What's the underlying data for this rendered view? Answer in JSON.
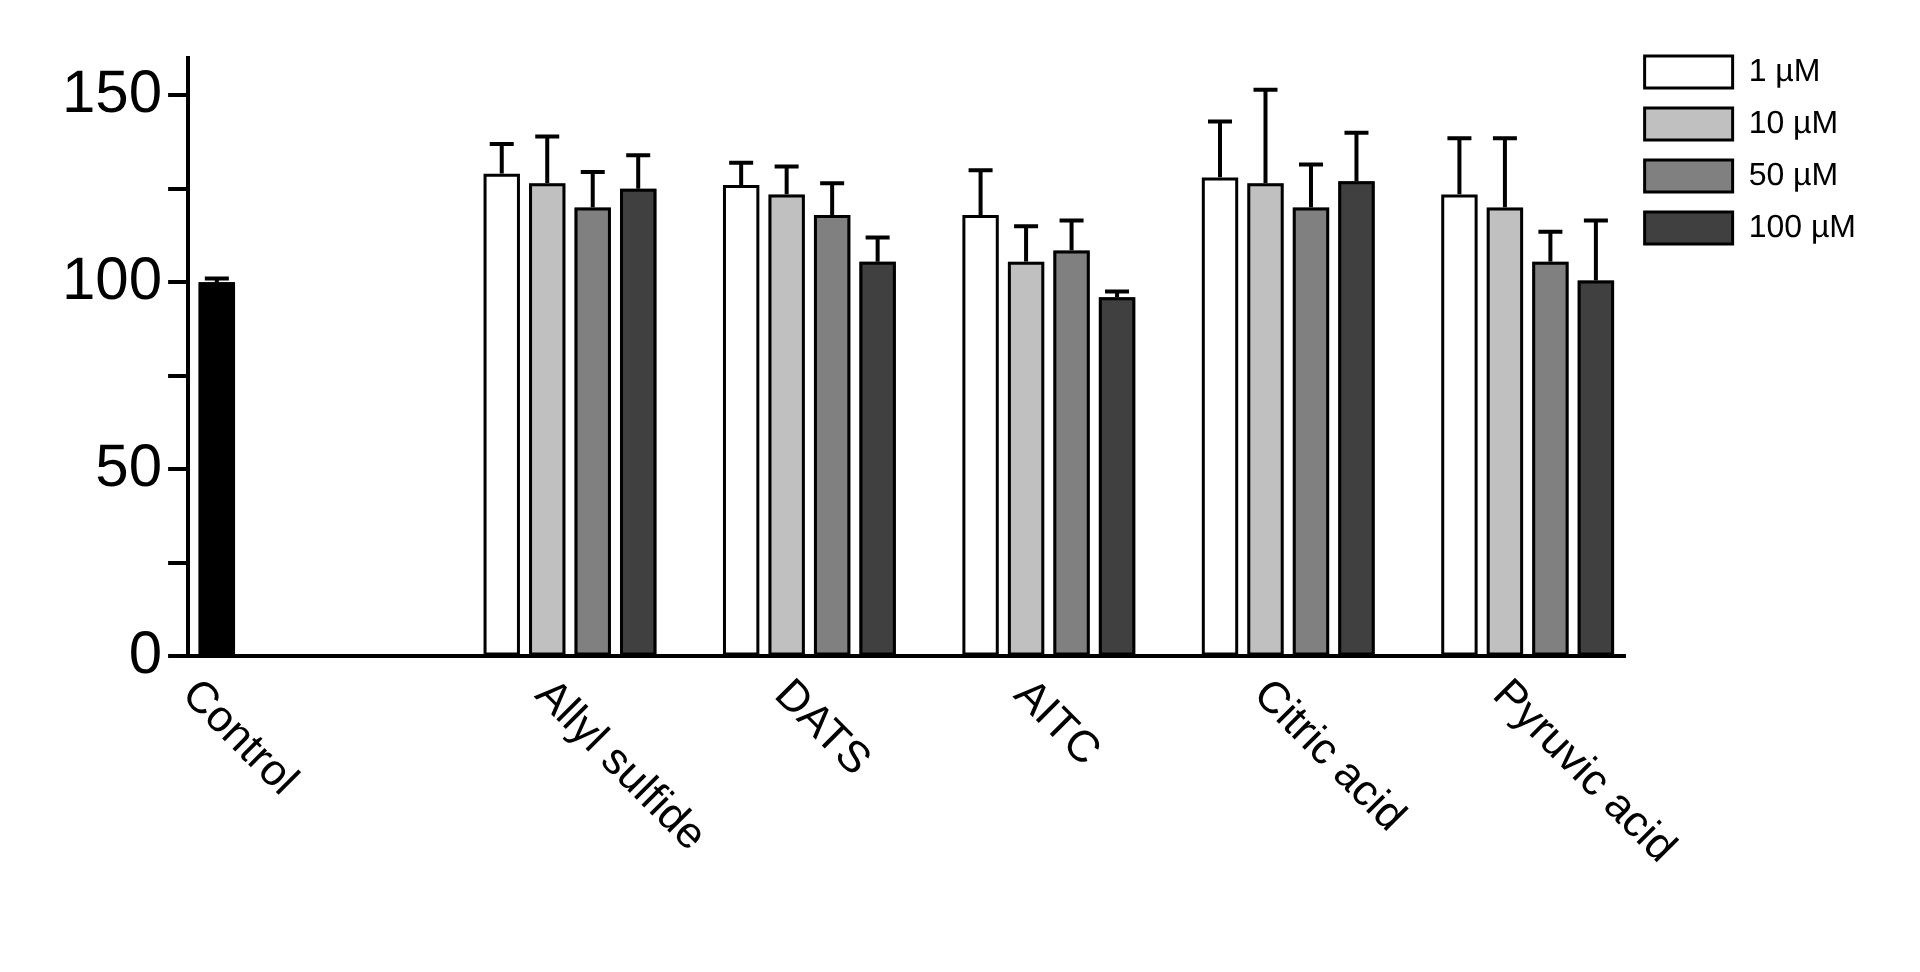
{
  "chart_data": {
    "type": "bar",
    "categories": [
      "Control",
      "Allyl sulfide",
      "DATS",
      "AITC",
      "Citric acid",
      "Pyruvic acid"
    ],
    "series": [
      {
        "color": "#000000",
        "values": [
          100,
          null,
          null,
          null,
          null,
          null
        ],
        "errors": [
          [
            100,
            101
          ],
          null,
          null,
          null,
          null,
          null
        ]
      },
      {
        "name": "1 µM",
        "color": "#ffffff",
        "values": [
          null,
          129,
          126,
          118,
          128,
          123.5
        ],
        "errors": [
          null,
          [
            129,
            137
          ],
          [
            126,
            132
          ],
          [
            118,
            130
          ],
          [
            128,
            143
          ],
          [
            123.5,
            138.5
          ]
        ]
      },
      {
        "name": "10 µM",
        "color": "#c0c0c0",
        "values": [
          null,
          126.5,
          123.5,
          105.5,
          126.5,
          120
        ],
        "errors": [
          null,
          [
            126.5,
            139
          ],
          [
            123.5,
            131
          ],
          [
            105.5,
            115
          ],
          [
            126.5,
            151.5
          ],
          [
            120,
            138.5
          ]
        ]
      },
      {
        "name": "50 µM",
        "color": "#808080",
        "values": [
          null,
          120,
          118,
          108.5,
          120,
          105.5
        ],
        "errors": [
          null,
          [
            120,
            129.5
          ],
          [
            118,
            126.5
          ],
          [
            108.5,
            116.5
          ],
          [
            120,
            131.5
          ],
          [
            105.5,
            113.5
          ]
        ]
      },
      {
        "name": "100 µM",
        "color": "#404040",
        "values": [
          null,
          125,
          105.5,
          96,
          127,
          100.5
        ],
        "errors": [
          null,
          [
            125,
            134
          ],
          [
            105.5,
            112
          ],
          [
            96,
            97.5
          ],
          [
            127,
            140
          ],
          [
            100.5,
            116.5
          ]
        ]
      }
    ],
    "ylim": [
      0,
      160
    ],
    "yticks": [
      0,
      {
        "value": 25,
        "label": null
      },
      50,
      {
        "value": 75,
        "label": null
      },
      100,
      {
        "value": 125,
        "label": null
      },
      150
    ],
    "grid": false,
    "legend": "top right"
  }
}
